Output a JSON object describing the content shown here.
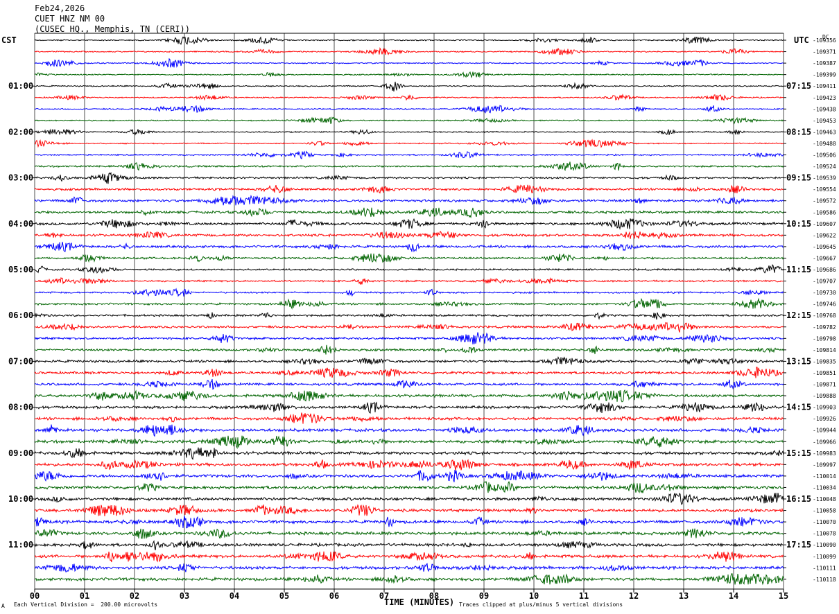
{
  "header": {
    "date": "Feb24,2026",
    "station": "CUET HNZ NM 00",
    "location": "(CUSEC HQ., Memphis, TN (CERI))"
  },
  "left_zone": "CST",
  "right_zone": "UTC",
  "dc_label": "DC",
  "footer": {
    "scale": "Each Vertical Division =  200.00 microvolts",
    "clip": "Traces clipped at plus/minus 5 vertical divisions",
    "corner": "A"
  },
  "chart_data": {
    "type": "helicorder",
    "xlabel": "TIME (MINUTES)",
    "x_ticks": [
      "00",
      "01",
      "02",
      "03",
      "04",
      "05",
      "06",
      "07",
      "08",
      "09",
      "10",
      "11",
      "12",
      "13",
      "14",
      "15"
    ],
    "xlim": [
      0,
      15
    ],
    "trace_colors": [
      "#000000",
      "#ff0000",
      "#0000ff",
      "#006400"
    ],
    "left_hour_labels": [
      "01:00",
      "02:00",
      "03:00",
      "04:00",
      "05:00",
      "06:00",
      "07:00",
      "08:00",
      "09:00",
      "10:00",
      "11:00"
    ],
    "right_hour_labels": [
      "07:15",
      "08:15",
      "09:15",
      "10:15",
      "11:15",
      "12:15",
      "13:15",
      "14:15",
      "15:15",
      "16:15",
      "17:15"
    ],
    "hour_label_first_trace": 4,
    "dc_offsets": [
      "-109356",
      "-109371",
      "-109387",
      "-109399",
      "-109411",
      "-109423",
      "-109438",
      "-109453",
      "-109463",
      "-109488",
      "-109506",
      "-109524",
      "-109539",
      "-109554",
      "-109572",
      "-109586",
      "-109607",
      "-109622",
      "-109645",
      "-109667",
      "-109686",
      "-109707",
      "-109730",
      "-109746",
      "-109768",
      "-109782",
      "-109798",
      "-109814",
      "-109835",
      "-109851",
      "-109871",
      "-109888",
      "-109903",
      "-109926",
      "-109944",
      "-109966",
      "-109983",
      "-109997",
      "-110014",
      "-110034",
      "-110048",
      "-110058",
      "-110070",
      "-110078",
      "-110090",
      "-110099",
      "-110111",
      "-110118"
    ],
    "trace_amplitude": [
      0.5,
      0.5,
      0.5,
      0.5,
      0.5,
      0.5,
      0.5,
      0.5,
      0.5,
      0.5,
      0.6,
      0.7,
      0.8,
      0.9,
      1.0,
      1.0,
      1.0,
      1.0,
      1.0,
      0.8,
      0.7,
      0.7,
      0.7,
      0.8,
      0.8,
      0.9,
      0.9,
      0.9,
      1.0,
      1.0,
      1.0,
      1.1,
      1.1,
      1.1,
      1.2,
      1.2,
      1.2,
      1.2,
      1.2,
      1.2,
      1.2,
      1.2,
      1.2,
      1.2,
      1.2,
      1.2,
      1.2,
      1.2
    ]
  }
}
